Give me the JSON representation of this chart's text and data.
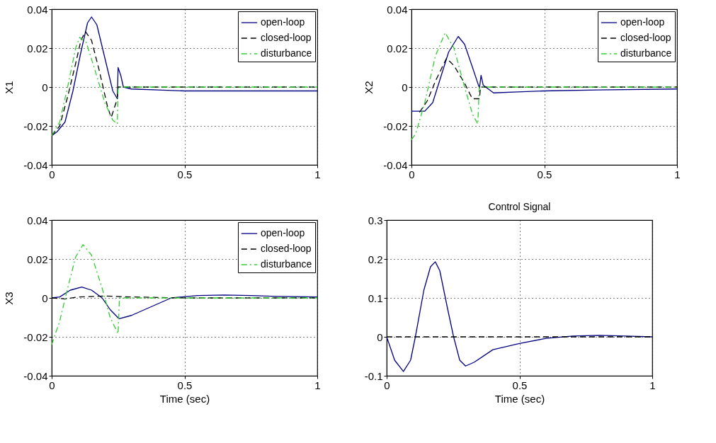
{
  "chart_data": [
    {
      "type": "line",
      "ylabel": "X1",
      "xlim": [
        0,
        1
      ],
      "ylim": [
        -0.04,
        0.04
      ],
      "xticks": [
        0,
        0.5,
        1
      ],
      "yticks": [
        -0.04,
        -0.02,
        0,
        0.02,
        0.04
      ],
      "grid": true,
      "legend": "top right",
      "series": [
        {
          "name": "open-loop",
          "color": "#000080",
          "line_style": "solid",
          "x": [
            0,
            0.02,
            0.05,
            0.08,
            0.11,
            0.135,
            0.15,
            0.17,
            0.2,
            0.23,
            0.247,
            0.25,
            0.26,
            0.27,
            0.3,
            0.4,
            0.5,
            0.7,
            1
          ],
          "values": [
            -0.025,
            -0.023,
            -0.018,
            -0.002,
            0.018,
            0.033,
            0.036,
            0.032,
            0.015,
            -0.002,
            -0.006,
            0.01,
            0.006,
            0.0,
            -0.001,
            -0.0015,
            -0.002,
            -0.002,
            -0.002
          ]
        },
        {
          "name": "closed-loop",
          "color": "#000000",
          "line_style": "dashed",
          "x": [
            0,
            0.03,
            0.06,
            0.09,
            0.11,
            0.127,
            0.15,
            0.18,
            0.21,
            0.224,
            0.247,
            0.25,
            0.3,
            0.5,
            1
          ],
          "values": [
            -0.025,
            -0.02,
            -0.005,
            0.012,
            0.024,
            0.0285,
            0.024,
            0.008,
            -0.01,
            -0.0157,
            -0.006,
            0,
            0,
            0,
            0
          ]
        },
        {
          "name": "disturbance",
          "color": "#33cc33",
          "line_style": "dashdot",
          "x": [
            0,
            0.03,
            0.06,
            0.09,
            0.105,
            0.13,
            0.16,
            0.2,
            0.23,
            0.247,
            0.25,
            1
          ],
          "values": [
            -0.025,
            -0.018,
            0.0,
            0.02,
            0.0255,
            0.023,
            0.01,
            -0.008,
            -0.017,
            -0.019,
            0,
            0
          ]
        }
      ]
    },
    {
      "type": "line",
      "ylabel": "X2",
      "xlim": [
        0,
        1
      ],
      "ylim": [
        -0.04,
        0.04
      ],
      "xticks": [
        0,
        0.5,
        1
      ],
      "yticks": [
        -0.04,
        -0.02,
        0,
        0.02,
        0.04
      ],
      "grid": true,
      "legend": "top right",
      "series": [
        {
          "name": "open-loop",
          "color": "#000080",
          "line_style": "solid",
          "x": [
            0,
            0.05,
            0.08,
            0.11,
            0.14,
            0.176,
            0.2,
            0.23,
            0.256,
            0.262,
            0.27,
            0.309,
            0.4,
            0.5,
            0.7,
            1
          ],
          "values": [
            -0.0124,
            -0.0124,
            -0.008,
            0.005,
            0.018,
            0.026,
            0.022,
            0.01,
            -0.0006,
            0.006,
            0.001,
            -0.003,
            -0.0025,
            -0.002,
            -0.0015,
            -0.001
          ]
        },
        {
          "name": "closed-loop",
          "color": "#000000",
          "line_style": "dashed",
          "x": [
            0.03,
            0.06,
            0.09,
            0.132,
            0.16,
            0.2,
            0.229,
            0.256,
            0.26,
            0.3,
            0.6,
            1
          ],
          "values": [
            -0.013,
            -0.007,
            0.003,
            0.0148,
            0.011,
            0.002,
            -0.006,
            -0.006,
            0,
            0,
            0,
            0
          ]
        },
        {
          "name": "disturbance",
          "color": "#33cc33",
          "line_style": "dashdot",
          "x": [
            0,
            0.016,
            0.05,
            0.09,
            0.127,
            0.16,
            0.2,
            0.23,
            0.25,
            0.255,
            1
          ],
          "values": [
            -0.027,
            -0.024,
            -0.008,
            0.016,
            0.0279,
            0.02,
            0.0,
            -0.014,
            -0.019,
            0,
            0
          ]
        }
      ]
    },
    {
      "type": "line",
      "ylabel": "X3",
      "xlabel": "Time (sec)",
      "xlim": [
        0,
        1
      ],
      "ylim": [
        -0.04,
        0.04
      ],
      "xticks": [
        0,
        0.5,
        1
      ],
      "yticks": [
        -0.04,
        -0.02,
        0,
        0.02,
        0.04
      ],
      "grid": true,
      "legend": "top right",
      "series": [
        {
          "name": "open-loop",
          "color": "#000080",
          "line_style": "solid",
          "x": [
            0,
            0.03,
            0.07,
            0.113,
            0.15,
            0.19,
            0.22,
            0.254,
            0.3,
            0.35,
            0.45,
            0.55,
            0.65,
            0.75,
            0.85,
            1
          ],
          "values": [
            0,
            0.0005,
            0.004,
            0.0056,
            0.004,
            0,
            -0.006,
            -0.0107,
            -0.009,
            -0.006,
            0,
            0.0012,
            0.0015,
            0.0012,
            0.0008,
            0.0005
          ]
        },
        {
          "name": "closed-loop",
          "color": "#000000",
          "line_style": "dashed",
          "x": [
            0,
            0.05,
            0.1,
            0.2,
            0.3,
            0.5,
            1
          ],
          "values": [
            0,
            -0.0005,
            0.0005,
            0.001,
            0.0005,
            0,
            0
          ]
        },
        {
          "name": "disturbance",
          "color": "#33cc33",
          "line_style": "dashdot",
          "x": [
            0,
            0.03,
            0.06,
            0.09,
            0.118,
            0.15,
            0.19,
            0.22,
            0.25,
            0.255,
            1
          ],
          "values": [
            -0.024,
            -0.012,
            0.005,
            0.021,
            0.0274,
            0.022,
            0.005,
            -0.01,
            -0.0184,
            0,
            0
          ]
        }
      ]
    },
    {
      "type": "line",
      "title": "Control Signal",
      "xlabel": "Time (sec)",
      "xlim": [
        0,
        1
      ],
      "ylim": [
        -0.1,
        0.3
      ],
      "xticks": [
        0,
        0.5,
        1
      ],
      "yticks": [
        -0.1,
        0,
        0.1,
        0.2,
        0.3
      ],
      "grid": true,
      "series": [
        {
          "color": "#000080",
          "line_style": "solid",
          "x": [
            0,
            0.03,
            0.063,
            0.09,
            0.108,
            0.14,
            0.165,
            0.183,
            0.2,
            0.23,
            0.252,
            0.275,
            0.297,
            0.33,
            0.4,
            0.5,
            0.6,
            0.7,
            0.8,
            0.9,
            1
          ],
          "values": [
            0,
            -0.06,
            -0.089,
            -0.06,
            0,
            0.12,
            0.18,
            0.193,
            0.17,
            0.07,
            0,
            -0.06,
            -0.075,
            -0.065,
            -0.033,
            -0.017,
            -0.004,
            0.002,
            0.004,
            0.002,
            0
          ]
        },
        {
          "color": "#000000",
          "line_style": "dashed",
          "x": [
            0,
            1
          ],
          "values": [
            0,
            0
          ]
        }
      ]
    }
  ]
}
